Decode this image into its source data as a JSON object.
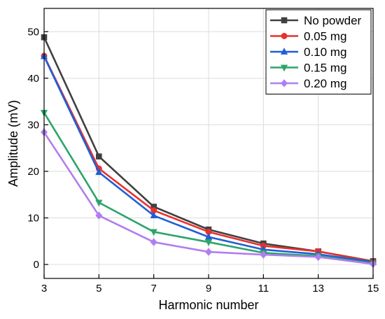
{
  "chart_data": {
    "type": "line",
    "title": "",
    "xlabel": "Harmonic number",
    "ylabel": "Amplitude (mV)",
    "x": [
      3,
      5,
      7,
      9,
      11,
      13,
      15
    ],
    "xlim": [
      3,
      15
    ],
    "ylim": [
      -3,
      55
    ],
    "xticks": [
      3,
      5,
      7,
      9,
      11,
      13,
      15
    ],
    "yticks": [
      0,
      10,
      20,
      30,
      40,
      50
    ],
    "grid": true,
    "legend_position": "top-right",
    "series": [
      {
        "name": "No powder",
        "color": "#404040",
        "marker": "square",
        "values": [
          48.8,
          23.2,
          12.4,
          7.5,
          4.5,
          2.8,
          0.7
        ]
      },
      {
        "name": "0.05 mg",
        "color": "#e8312f",
        "marker": "circle",
        "values": [
          44.8,
          20.6,
          11.6,
          7.0,
          4.0,
          2.8,
          0.6
        ]
      },
      {
        "name": "0.10 mg",
        "color": "#1f5fd6",
        "marker": "triangle-up",
        "values": [
          44.7,
          19.8,
          10.5,
          5.9,
          3.2,
          2.2,
          0.5
        ]
      },
      {
        "name": "0.15 mg",
        "color": "#2ea46a",
        "marker": "triangle-down",
        "values": [
          32.6,
          13.3,
          7.0,
          4.8,
          2.5,
          1.8,
          0.2
        ]
      },
      {
        "name": "0.20 mg",
        "color": "#b07ef0",
        "marker": "diamond",
        "values": [
          28.4,
          10.5,
          4.8,
          2.7,
          2.1,
          1.6,
          0.1
        ]
      }
    ]
  }
}
